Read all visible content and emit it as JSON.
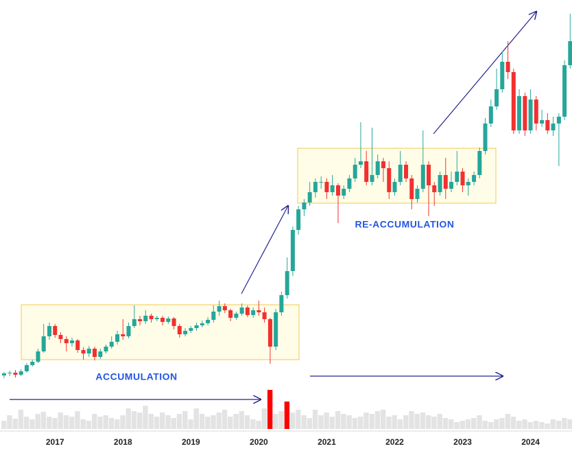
{
  "chart_data": {
    "type": "candlestick",
    "x": [
      2016.25,
      2016.333,
      2016.417,
      2016.5,
      2016.583,
      2016.667,
      2016.75,
      2016.833,
      2016.917,
      2017,
      2017.083,
      2017.167,
      2017.25,
      2017.333,
      2017.417,
      2017.5,
      2017.583,
      2017.667,
      2017.75,
      2017.833,
      2017.917,
      2018,
      2018.083,
      2018.167,
      2018.25,
      2018.333,
      2018.417,
      2018.5,
      2018.583,
      2018.667,
      2018.75,
      2018.833,
      2018.917,
      2019,
      2019.083,
      2019.167,
      2019.25,
      2019.333,
      2019.417,
      2019.5,
      2019.583,
      2019.667,
      2019.75,
      2019.833,
      2019.917,
      2020,
      2020.083,
      2020.167,
      2020.25,
      2020.333,
      2020.417,
      2020.5,
      2020.583,
      2020.667,
      2020.75,
      2020.833,
      2020.917,
      2021,
      2021.083,
      2021.167,
      2021.25,
      2021.333,
      2021.417,
      2021.5,
      2021.583,
      2021.667,
      2021.75,
      2021.833,
      2021.917,
      2022,
      2022.083,
      2022.167,
      2022.25,
      2022.333,
      2022.417,
      2022.5,
      2022.583,
      2022.667,
      2022.75,
      2022.833,
      2022.917,
      2023,
      2023.083,
      2023.167,
      2023.25,
      2023.333,
      2023.417,
      2023.5,
      2023.583,
      2023.667,
      2023.75,
      2023.833,
      2023.917,
      2024,
      2024.083,
      2024.167,
      2024.25,
      2024.333,
      2024.417,
      2024.5,
      2024.583
    ],
    "open": [
      113,
      116,
      117,
      114,
      119,
      128,
      133,
      148,
      170,
      185,
      172,
      166,
      160,
      164,
      150,
      145,
      152,
      140,
      148,
      155,
      162,
      173,
      170,
      185,
      195,
      192,
      200,
      195,
      197,
      191,
      196,
      185,
      173,
      178,
      182,
      186,
      189,
      194,
      206,
      214,
      208,
      197,
      203,
      212,
      201,
      208,
      205,
      195,
      155,
      205,
      230,
      265,
      325,
      355,
      365,
      380,
      395,
      395,
      380,
      390,
      375,
      385,
      400,
      420,
      425,
      395,
      405,
      425,
      415,
      380,
      395,
      420,
      400,
      370,
      385,
      420,
      390,
      380,
      405,
      385,
      395,
      410,
      390,
      395,
      405,
      440,
      480,
      505,
      530,
      570,
      555,
      470,
      520,
      470,
      515,
      480,
      485,
      470,
      480,
      490,
      565
    ],
    "high": [
      118,
      120,
      121,
      122,
      131,
      136,
      152,
      188,
      190,
      188,
      176,
      170,
      168,
      166,
      154,
      156,
      155,
      152,
      158,
      170,
      178,
      195,
      190,
      215,
      200,
      208,
      203,
      200,
      200,
      199,
      198,
      188,
      182,
      185,
      190,
      193,
      198,
      215,
      222,
      218,
      210,
      206,
      218,
      215,
      212,
      222,
      212,
      197,
      210,
      235,
      285,
      330,
      360,
      370,
      395,
      400,
      403,
      400,
      405,
      393,
      390,
      405,
      430,
      482,
      440,
      474,
      435,
      430,
      425,
      400,
      440,
      425,
      405,
      390,
      470,
      425,
      395,
      410,
      430,
      410,
      440,
      415,
      400,
      410,
      445,
      488,
      515,
      560,
      585,
      600,
      560,
      530,
      525,
      530,
      520,
      500,
      495,
      490,
      495,
      572,
      640
    ],
    "low": [
      109,
      112,
      110,
      112,
      117,
      126,
      131,
      146,
      165,
      168,
      160,
      148,
      155,
      146,
      136,
      140,
      135,
      137,
      145,
      152,
      158,
      165,
      167,
      182,
      186,
      188,
      190,
      192,
      186,
      188,
      180,
      168,
      170,
      175,
      178,
      183,
      186,
      190,
      200,
      204,
      192,
      194,
      200,
      198,
      197,
      200,
      190,
      130,
      150,
      200,
      225,
      258,
      318,
      345,
      360,
      372,
      385,
      370,
      375,
      335,
      370,
      380,
      395,
      415,
      390,
      390,
      400,
      395,
      370,
      375,
      390,
      395,
      355,
      365,
      380,
      345,
      360,
      375,
      370,
      380,
      390,
      380,
      375,
      390,
      400,
      435,
      475,
      500,
      525,
      545,
      465,
      465,
      462,
      465,
      470,
      475,
      465,
      462,
      418,
      485,
      560
    ],
    "close": [
      116,
      117,
      114,
      119,
      128,
      133,
      148,
      170,
      185,
      172,
      166,
      160,
      164,
      150,
      145,
      152,
      140,
      148,
      155,
      162,
      173,
      170,
      185,
      195,
      192,
      200,
      195,
      197,
      191,
      196,
      185,
      173,
      178,
      182,
      186,
      189,
      194,
      206,
      214,
      208,
      197,
      203,
      212,
      201,
      208,
      205,
      195,
      155,
      205,
      230,
      265,
      325,
      355,
      365,
      380,
      395,
      395,
      380,
      390,
      375,
      385,
      400,
      420,
      425,
      395,
      405,
      425,
      415,
      380,
      395,
      420,
      400,
      370,
      385,
      420,
      390,
      380,
      405,
      385,
      395,
      410,
      390,
      395,
      405,
      440,
      480,
      505,
      530,
      570,
      555,
      470,
      520,
      470,
      515,
      480,
      485,
      470,
      480,
      490,
      565,
      600
    ],
    "up_color": "#26a69a",
    "down_color": "#f23030",
    "xlim": [
      2016.19,
      2024.61
    ],
    "xticks": [
      2017,
      2018,
      2019,
      2020,
      2021,
      2022,
      2023,
      2024
    ],
    "ylim": [
      0,
      660
    ],
    "volume": {
      "values": [
        12,
        20,
        15,
        28,
        18,
        14,
        22,
        25,
        18,
        16,
        24,
        20,
        18,
        26,
        14,
        12,
        22,
        18,
        20,
        16,
        14,
        20,
        30,
        26,
        24,
        34,
        22,
        18,
        24,
        20,
        16,
        22,
        26,
        14,
        30,
        22,
        18,
        20,
        24,
        28,
        18,
        22,
        26,
        20,
        14,
        12,
        30,
        57,
        22,
        26,
        40,
        24,
        28,
        20,
        16,
        28,
        20,
        24,
        18,
        26,
        22,
        20,
        16,
        18,
        24,
        22,
        26,
        28,
        18,
        20,
        14,
        20,
        26,
        22,
        24,
        20,
        18,
        22,
        16,
        14,
        10,
        12,
        14,
        16,
        20,
        12,
        10,
        14,
        16,
        22,
        18,
        12,
        14,
        10,
        12,
        10,
        8,
        14,
        12,
        16,
        14
      ],
      "color": "#e3e3e3",
      "highlight_color": "#ff0000",
      "highlight": [
        47,
        50
      ],
      "ylim": [
        0,
        60
      ]
    },
    "annotations": [
      "ACCUMULATION",
      "RE-ACCUMULATION"
    ]
  }
}
